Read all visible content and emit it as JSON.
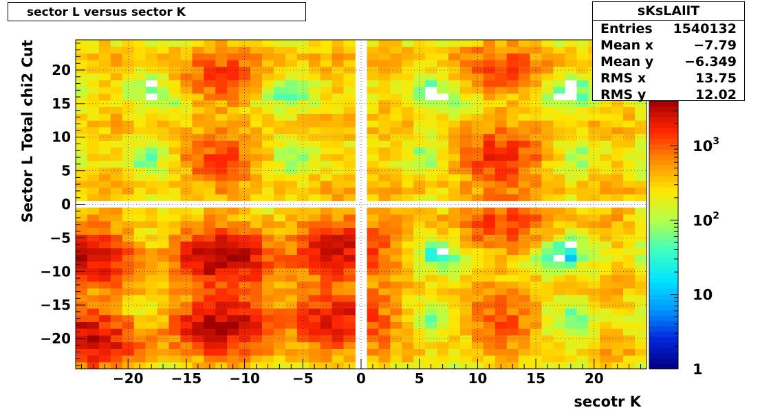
{
  "title": "sector L versus sector K",
  "stats": {
    "name": "sKsLAllT",
    "rows": [
      {
        "label": "Entries",
        "value": "1540132"
      },
      {
        "label": "Mean x",
        "value": "−7.79"
      },
      {
        "label": "Mean y",
        "value": "−6.349"
      },
      {
        "label": "RMS x",
        "value": "13.75"
      },
      {
        "label": "RMS y",
        "value": "12.02"
      }
    ]
  },
  "chart_data": {
    "type": "heatmap",
    "title": "sector L versus sector K",
    "xlabel": "secotr K",
    "ylabel": "Sector L   Total chi2 Cut",
    "xlim": [
      -24.5,
      24.5
    ],
    "ylim": [
      -24.5,
      24.5
    ],
    "xticks": [
      "−20",
      "−15",
      "−10",
      "−5",
      "0",
      "5",
      "10",
      "15",
      "20"
    ],
    "yticks": [
      "−20",
      "−15",
      "−10",
      "−5",
      "0",
      "5",
      "10",
      "15",
      "20"
    ],
    "zscale": "log",
    "zlim": [
      1,
      4000
    ],
    "zticks": [
      "1",
      "10",
      "10^2",
      "10^3"
    ],
    "grid": true,
    "colormap": [
      "#00007f",
      "#0026d9",
      "#0098ff",
      "#00e5ff",
      "#40ffbf",
      "#b4ff4a",
      "#ffe600",
      "#ff8c00",
      "#ff2600",
      "#a00000"
    ],
    "bands_x": [
      -22,
      -12,
      -2,
      2,
      12,
      22
    ],
    "bands_y": [
      -22,
      -12,
      -2,
      2,
      12,
      22
    ],
    "peak_clusters": [
      {
        "x": -24,
        "y": -8,
        "count": 2500
      },
      {
        "x": -24,
        "y": -20,
        "count": 3000
      },
      {
        "x": -12,
        "y": -8,
        "count": 3200
      },
      {
        "x": -12,
        "y": -18,
        "count": 3000
      },
      {
        "x": -12,
        "y": 7,
        "count": 1000
      },
      {
        "x": -12,
        "y": 19,
        "count": 900
      },
      {
        "x": -2,
        "y": -7,
        "count": 2200
      },
      {
        "x": -2,
        "y": -17,
        "count": 2000
      },
      {
        "x": 12,
        "y": -3,
        "count": 1000
      },
      {
        "x": 12,
        "y": 7,
        "count": 1500
      },
      {
        "x": 12,
        "y": 20,
        "count": 900
      },
      {
        "x": 12,
        "y": -17,
        "count": 800
      }
    ],
    "empty_line": {
      "x": 0,
      "y": 0
    }
  }
}
